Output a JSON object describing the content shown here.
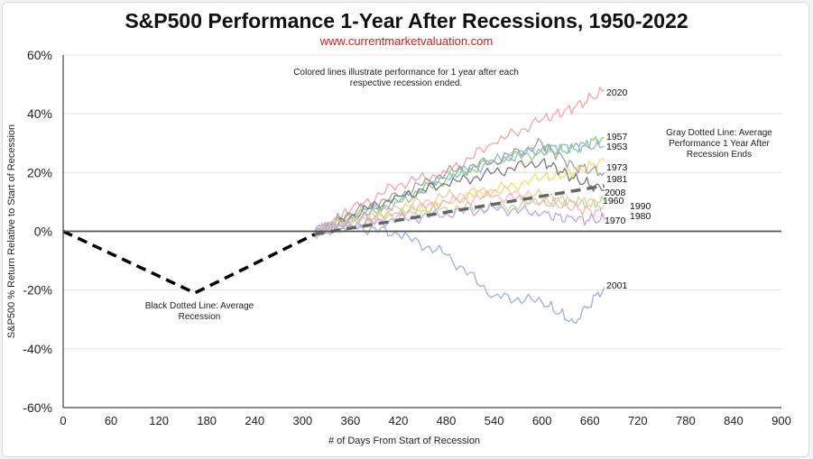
{
  "title": "S&P500 Performance 1-Year After Recessions, 1950-2022",
  "subtitle": "www.currentmarketvaluation.com",
  "chart_data": {
    "type": "line",
    "xlabel": "# of Days From Start of Recession",
    "ylabel": "S&P500 % Return Relative to Start of Recession",
    "xlim": [
      0,
      900
    ],
    "ylim": [
      -60,
      60
    ],
    "x_ticks": [
      "0",
      "60",
      "120",
      "180",
      "240",
      "300",
      "360",
      "420",
      "480",
      "540",
      "600",
      "660",
      "720",
      "780",
      "840",
      "900"
    ],
    "y_ticks": [
      "60%",
      "40%",
      "20%",
      "0%",
      "-20%",
      "-40%",
      "-60%"
    ],
    "grid": true,
    "annotations": [
      [
        "Colored lines illustrate performance for 1 year after each",
        "respective recession ended."
      ],
      [
        "Gray Dotted Line: Average",
        "Performance 1 Year After",
        "Recession Ends"
      ],
      [
        "Black Dotted Line: Average",
        "Recession"
      ]
    ],
    "average_recession": {
      "color": "#000000",
      "x": [
        0,
        165,
        315
      ],
      "y": [
        0,
        -21,
        -1
      ]
    },
    "average_after": {
      "color": "#666666",
      "x": [
        315,
        678
      ],
      "y": [
        -1,
        15.5
      ]
    },
    "series": [
      {
        "name": "2020",
        "color": "#f4a3a8",
        "x": [
          315,
          360,
          420,
          480,
          540,
          600,
          640,
          678
        ],
        "y": [
          -1,
          7,
          16,
          20,
          30,
          38,
          42,
          48
        ]
      },
      {
        "name": "1957",
        "color": "#8ccf76",
        "x": [
          315,
          360,
          420,
          480,
          540,
          600,
          640,
          678
        ],
        "y": [
          0,
          5,
          10,
          18,
          24,
          27,
          28,
          32
        ]
      },
      {
        "name": "1953",
        "color": "#8fb4e3",
        "x": [
          315,
          360,
          420,
          480,
          540,
          600,
          640,
          678
        ],
        "y": [
          0,
          4,
          10,
          18,
          24,
          28,
          29,
          29
        ]
      },
      {
        "name": "1973",
        "color": "#f6dc6c",
        "x": [
          315,
          360,
          420,
          480,
          540,
          600,
          640,
          678
        ],
        "y": [
          0,
          2,
          6,
          10,
          14,
          18,
          20,
          24
        ]
      },
      {
        "name": "1981",
        "color": "#a0a0a0",
        "x": [
          315,
          360,
          420,
          480,
          540,
          600,
          640,
          678
        ],
        "y": [
          0,
          6,
          12,
          20,
          24,
          30,
          22,
          20
        ]
      },
      {
        "name": "2008",
        "color": "#7a7a7a",
        "x": [
          315,
          360,
          420,
          480,
          540,
          600,
          640,
          678
        ],
        "y": [
          -2,
          5,
          12,
          16,
          20,
          24,
          18,
          14
        ]
      },
      {
        "name": "1960",
        "color": "#b8e09e",
        "x": [
          315,
          360,
          420,
          480,
          540,
          600,
          640,
          678
        ],
        "y": [
          0,
          3,
          6,
          8,
          8,
          10,
          10,
          10
        ]
      },
      {
        "name": "1990",
        "color": "#f7c8a0",
        "x": [
          315,
          360,
          420,
          480,
          540,
          600,
          640,
          678
        ],
        "y": [
          0,
          4,
          8,
          12,
          14,
          12,
          10,
          9
        ]
      },
      {
        "name": "1980",
        "color": "#f2b5c3",
        "x": [
          315,
          360,
          420,
          480,
          540,
          600,
          640,
          678
        ],
        "y": [
          0,
          3,
          6,
          10,
          12,
          10,
          8,
          6
        ]
      },
      {
        "name": "1970",
        "color": "#c3a6e0",
        "x": [
          315,
          360,
          420,
          480,
          540,
          600,
          640,
          678
        ],
        "y": [
          0,
          2,
          4,
          6,
          8,
          6,
          4,
          4
        ]
      },
      {
        "name": "2001",
        "color": "#9fb0dd",
        "x": [
          315,
          360,
          420,
          480,
          540,
          600,
          640,
          678
        ],
        "y": [
          0,
          2,
          -1,
          -8,
          -22,
          -24,
          -31,
          -19
        ]
      }
    ]
  }
}
